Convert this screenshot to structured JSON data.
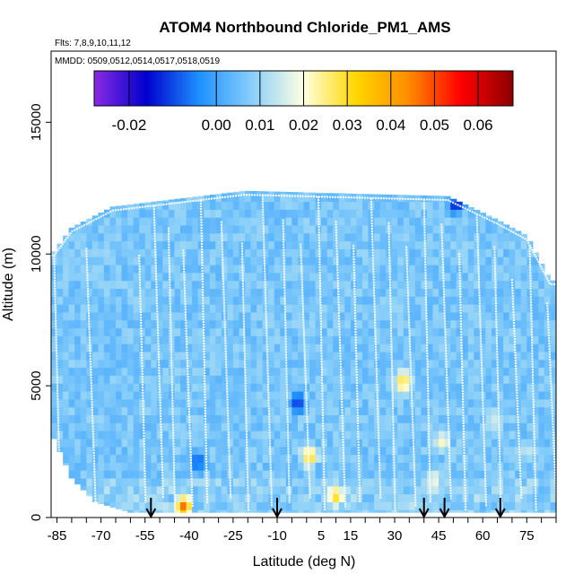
{
  "chart_data": {
    "type": "heatmap",
    "title": "ATOM4 Northbound Chloride_PM1_AMS",
    "flights_label": "Flts: 7,8,9,10,11,12",
    "dates_label": "MMDD: 0509,0512,0514,0517,0518,0519",
    "xlabel": "Latitude (deg N)",
    "ylabel": "Altitude (m)",
    "xlim": [
      -87,
      85
    ],
    "ylim": [
      0,
      17700
    ],
    "x_ticks": [
      "-85",
      "-70",
      "-55",
      "-40",
      "-25",
      "-10",
      "5",
      "15",
      "30",
      "45",
      "60",
      "75"
    ],
    "y_ticks": [
      "0",
      "5000",
      "10000",
      "15000"
    ],
    "colorbar": {
      "range": [
        -0.028,
        0.068
      ],
      "ticks": [
        "-0.02",
        "0.00",
        "0.01",
        "0.02",
        "0.03",
        "0.04",
        "0.05",
        "0.06"
      ],
      "colors": [
        "#8a2be2",
        "#0000cd",
        "#1e90ff",
        "#87cefa",
        "#ffffe0",
        "#ffd700",
        "#ff8c00",
        "#ff0000",
        "#8b0000"
      ]
    },
    "ceiling_profile": [
      {
        "lat": -86,
        "alt": 10100
      },
      {
        "lat": -80,
        "alt": 11000
      },
      {
        "lat": -66,
        "alt": 11800
      },
      {
        "lat": -21,
        "alt": 12400
      },
      {
        "lat": 48,
        "alt": 12200
      },
      {
        "lat": 65,
        "alt": 11300
      },
      {
        "lat": 75,
        "alt": 10700
      },
      {
        "lat": 83,
        "alt": 9000
      }
    ],
    "floor_profile": [
      {
        "lat": -86,
        "alt": 3000
      },
      {
        "lat": -80,
        "alt": 1500
      },
      {
        "lat": -72,
        "alt": 600
      },
      {
        "lat": -60,
        "alt": 200
      },
      {
        "lat": 84,
        "alt": 200
      }
    ],
    "profile_latitudes": [
      -86,
      -75,
      -57,
      -52,
      -47,
      -42,
      -36,
      -29,
      -22,
      -15,
      -8,
      -2,
      4,
      10,
      16,
      22,
      28,
      34,
      40,
      46,
      52,
      58,
      64,
      70,
      76,
      82
    ],
    "hotspots": [
      {
        "lat": -42,
        "alt": 250,
        "value": 0.05
      },
      {
        "lat": 1,
        "alt": 2200,
        "value": 0.035
      },
      {
        "lat": 10,
        "alt": 700,
        "value": 0.033
      },
      {
        "lat": 33,
        "alt": 5000,
        "value": 0.034
      },
      {
        "lat": 46,
        "alt": 2700,
        "value": 0.022
      },
      {
        "lat": 43,
        "alt": 1300,
        "value": 0.02
      },
      {
        "lat": -37,
        "alt": 2000,
        "value": -0.012
      },
      {
        "lat": -3,
        "alt": 4200,
        "value": -0.015
      },
      {
        "lat": 51,
        "alt": 11800,
        "value": -0.018
      },
      {
        "lat": 64,
        "alt": 3500,
        "value": 0.016
      },
      {
        "lat": 75,
        "alt": 2400,
        "value": 0.015
      }
    ],
    "markers_lat": [
      -53,
      -10,
      40,
      47,
      66
    ],
    "grid": false,
    "legend": "top"
  }
}
